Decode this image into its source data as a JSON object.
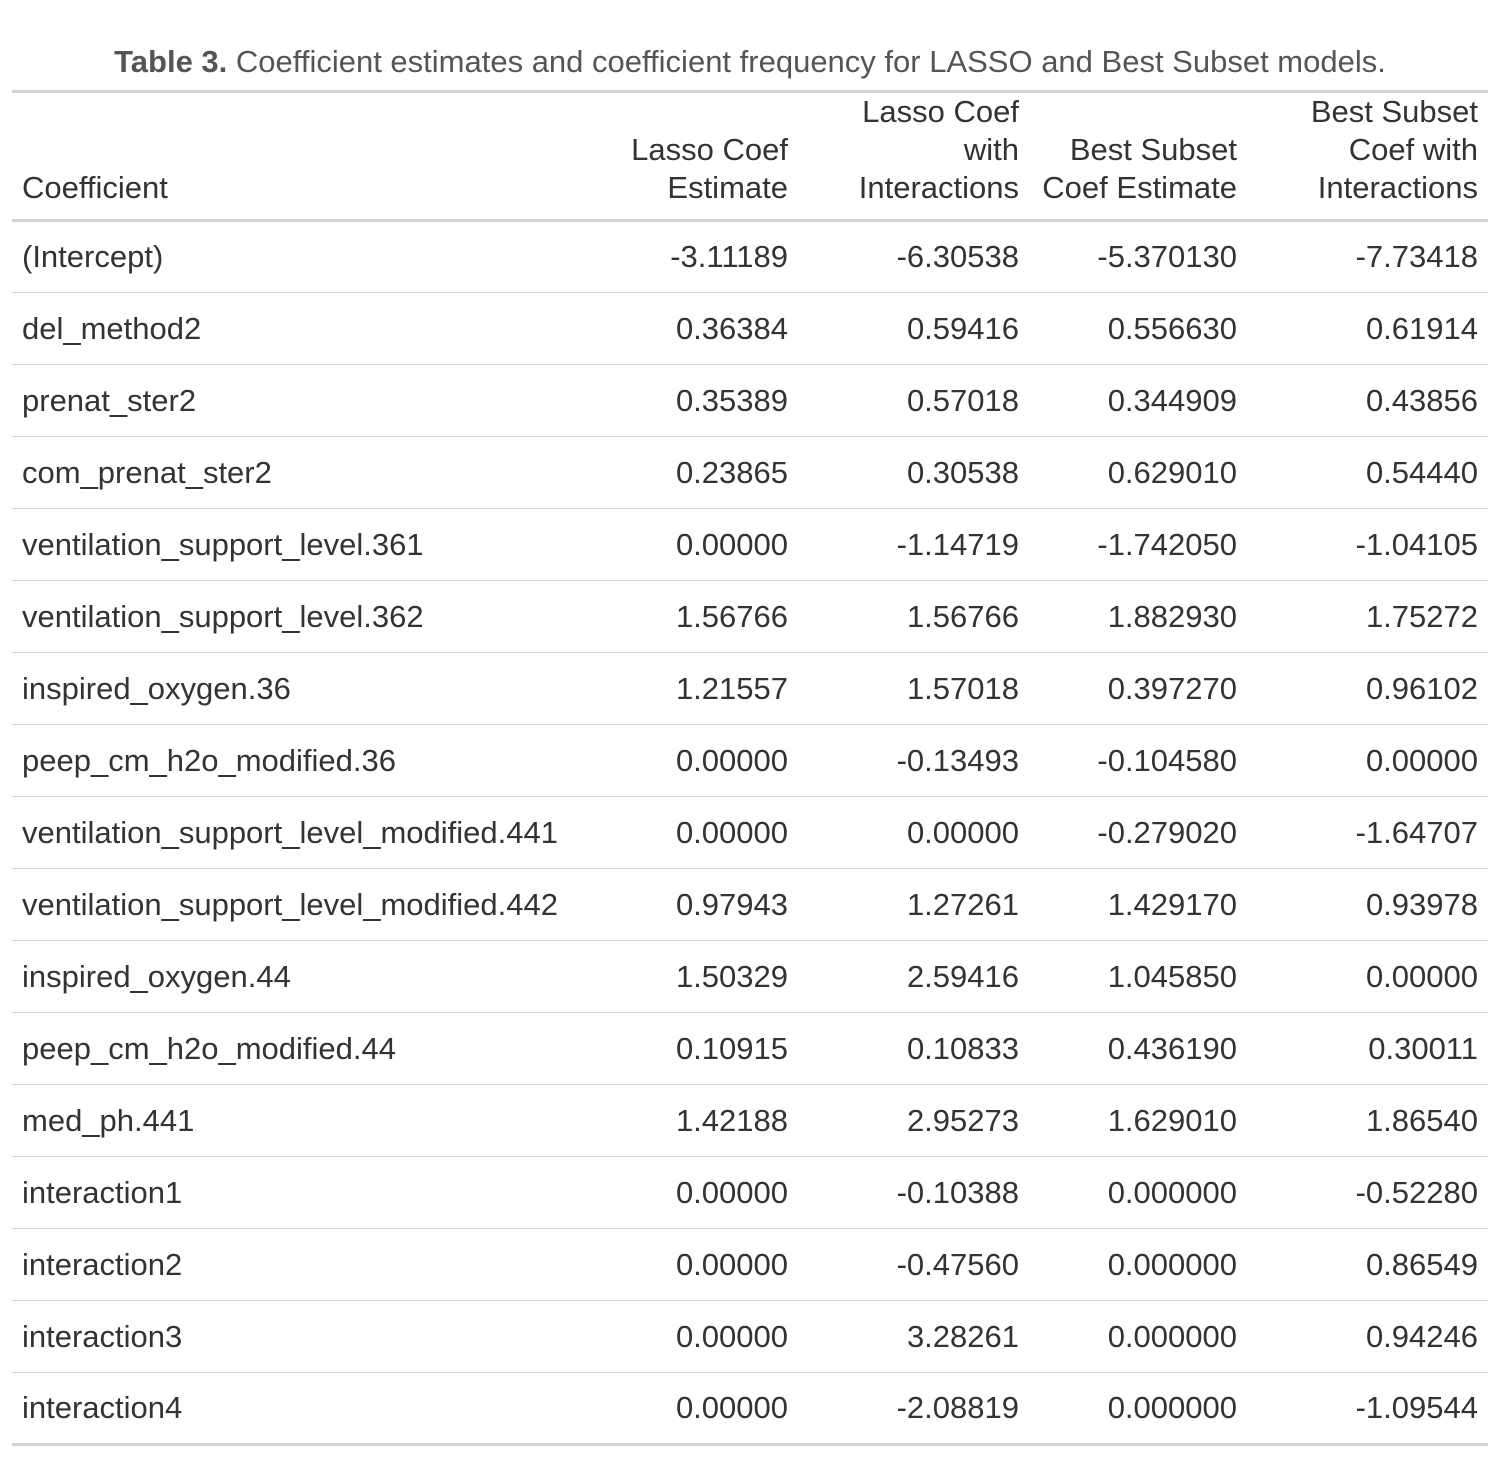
{
  "caption": {
    "label": "Table 3.",
    "text": "Coefficient estimates and coefficient frequency for LASSO and Best Subset models."
  },
  "headers": [
    "Coefficient",
    "Lasso Coef Estimate",
    "Lasso Coef with Interactions",
    "Best Subset Coef Estimate",
    "Best Subset Coef with Interactions"
  ],
  "rows": [
    [
      "(Intercept)",
      "-3.11189",
      "-6.30538",
      "-5.370130",
      "-7.73418"
    ],
    [
      "del_method2",
      "0.36384",
      "0.59416",
      "0.556630",
      "0.61914"
    ],
    [
      "prenat_ster2",
      "0.35389",
      "0.57018",
      "0.344909",
      "0.43856"
    ],
    [
      "com_prenat_ster2",
      "0.23865",
      "0.30538",
      "0.629010",
      "0.54440"
    ],
    [
      "ventilation_support_level.361",
      "0.00000",
      "-1.14719",
      "-1.742050",
      "-1.04105"
    ],
    [
      "ventilation_support_level.362",
      "1.56766",
      "1.56766",
      "1.882930",
      "1.75272"
    ],
    [
      "inspired_oxygen.36",
      "1.21557",
      "1.57018",
      "0.397270",
      "0.96102"
    ],
    [
      "peep_cm_h2o_modified.36",
      "0.00000",
      "-0.13493",
      "-0.104580",
      "0.00000"
    ],
    [
      "ventilation_support_level_modified.441",
      "0.00000",
      "0.00000",
      "-0.279020",
      "-1.64707"
    ],
    [
      "ventilation_support_level_modified.442",
      "0.97943",
      "1.27261",
      "1.429170",
      "0.93978"
    ],
    [
      "inspired_oxygen.44",
      "1.50329",
      "2.59416",
      "1.045850",
      "0.00000"
    ],
    [
      "peep_cm_h2o_modified.44",
      "0.10915",
      "0.10833",
      "0.436190",
      "0.30011"
    ],
    [
      "med_ph.441",
      "1.42188",
      "2.95273",
      "1.629010",
      "1.86540"
    ],
    [
      "interaction1",
      "0.00000",
      "-0.10388",
      "0.000000",
      "-0.52280"
    ],
    [
      "interaction2",
      "0.00000",
      "-0.47560",
      "0.000000",
      "0.86549"
    ],
    [
      "interaction3",
      "0.00000",
      "3.28261",
      "0.000000",
      "0.94246"
    ],
    [
      "interaction4",
      "0.00000",
      "-2.08819",
      "0.000000",
      "-1.09544"
    ]
  ]
}
